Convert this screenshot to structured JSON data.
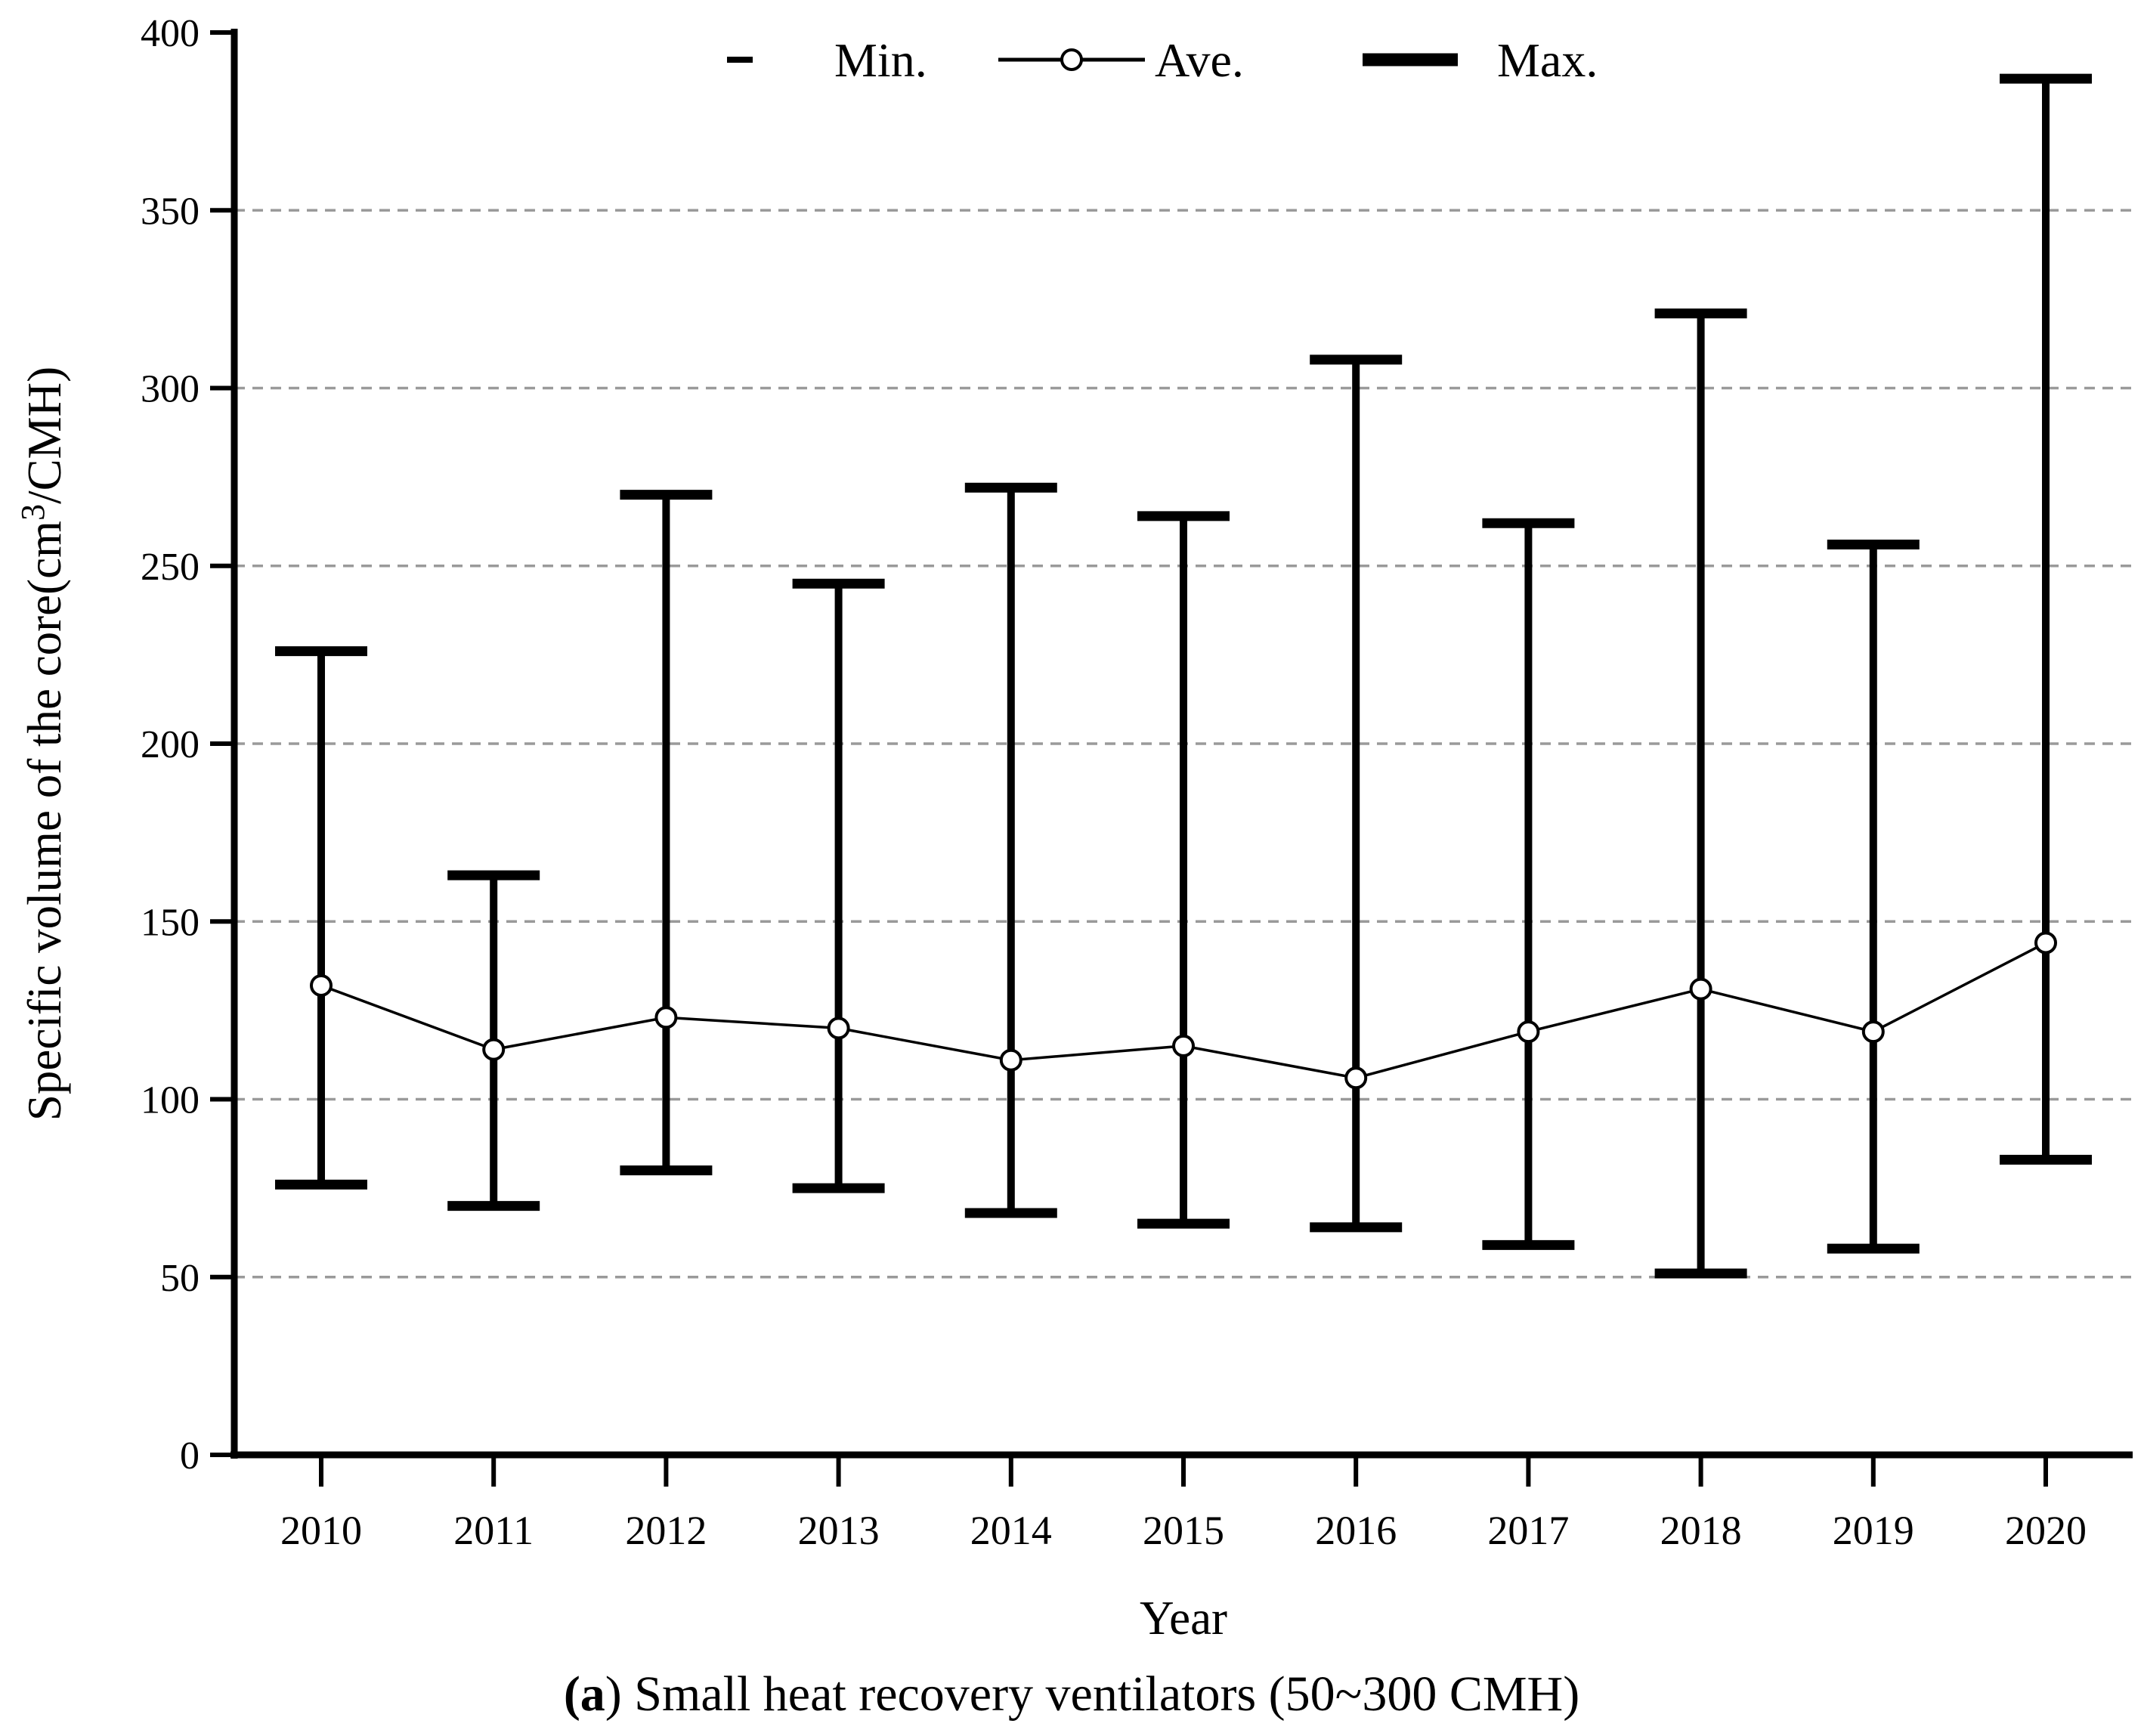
{
  "legend": {
    "min_label": "Min.",
    "ave_label": "Ave.",
    "max_label": "Max."
  },
  "axes": {
    "xlabel": "Year",
    "ylabel_pre": "Specific volume of the core(cm",
    "ylabel_sup": "3",
    "ylabel_post": "/CMH)"
  },
  "caption": {
    "open": "(",
    "letter": "a",
    "rest": ") Small heat recovery ventilators (50~300 CMH)"
  },
  "chart_data": {
    "type": "line",
    "title": "",
    "xlabel": "Year",
    "ylabel": "Specific volume of the core(cm3/CMH)",
    "categories": [
      2010,
      2011,
      2012,
      2013,
      2014,
      2015,
      2016,
      2017,
      2018,
      2019,
      2020
    ],
    "series": [
      {
        "name": "Min.",
        "values": [
          76,
          70,
          80,
          75,
          68,
          65,
          64,
          59,
          51,
          58,
          83
        ]
      },
      {
        "name": "Ave.",
        "values": [
          132,
          114,
          123,
          120,
          111,
          115,
          106,
          119,
          131,
          119,
          144
        ]
      },
      {
        "name": "Max.",
        "values": [
          226,
          163,
          270,
          245,
          272,
          264,
          308,
          262,
          321,
          256,
          387
        ]
      }
    ],
    "ylim": [
      0,
      400
    ],
    "yticks": [
      0,
      50,
      100,
      150,
      200,
      250,
      300,
      350,
      400
    ],
    "grid_values": [
      50,
      100,
      150,
      200,
      250,
      300,
      350
    ],
    "grid_style": "horizontal-dashed",
    "legend_position": "top-center",
    "colors": {
      "data": "#000000",
      "grid": "#9a9a9a",
      "marker_fill": "#ffffff"
    }
  }
}
